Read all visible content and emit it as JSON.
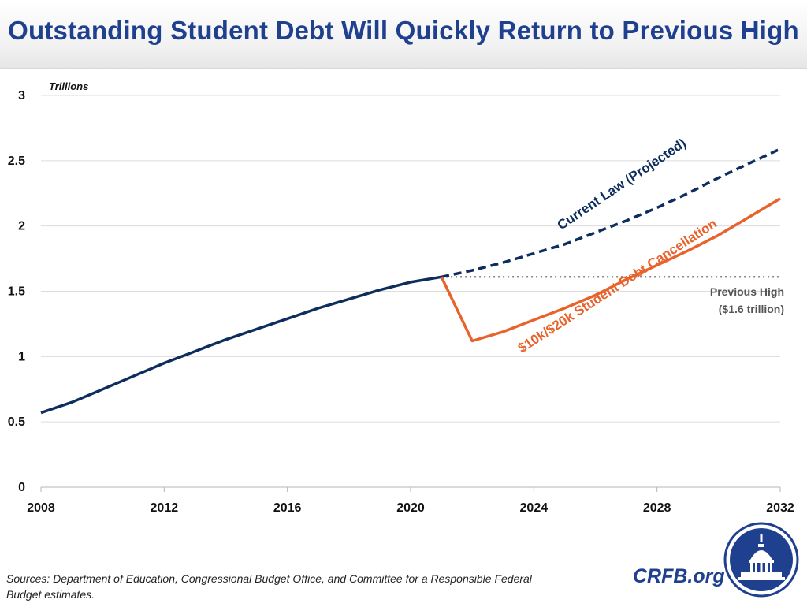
{
  "header": {
    "title": "Outstanding Student Debt Will Quickly Return to Previous High"
  },
  "footer": {
    "sources": "Sources: Department of Education, Congressional Budget Office, and Committee for a Responsible Federal Budget estimates.",
    "brand": "CRFB.org"
  },
  "colors": {
    "navy": "#0d2d5e",
    "orange": "#e8632c",
    "grey_dots": "#8a8a8a",
    "title_blue": "#1f3f8f"
  },
  "chart_data": {
    "type": "line",
    "ylabel": "Trillions",
    "xlim": [
      2008,
      2032
    ],
    "ylim": [
      0,
      3
    ],
    "xticks": [
      2008,
      2012,
      2016,
      2020,
      2024,
      2028,
      2032
    ],
    "yticks": [
      0,
      0.5,
      1,
      1.5,
      2,
      2.5,
      3
    ],
    "ytick_labels": [
      "0",
      "0.5",
      "1",
      "1.5",
      "2",
      "2.5",
      "3"
    ],
    "grid": true,
    "series": [
      {
        "style": "solid",
        "color": "#0d2d5e",
        "x": [
          2008,
          2009,
          2010,
          2011,
          2012,
          2013,
          2014,
          2015,
          2016,
          2017,
          2018,
          2019,
          2020,
          2021
        ],
        "y": [
          0.57,
          0.65,
          0.75,
          0.85,
          0.95,
          1.04,
          1.13,
          1.21,
          1.29,
          1.37,
          1.44,
          1.51,
          1.57,
          1.61
        ]
      },
      {
        "name": "Current Law (Projected)",
        "style": "dashed",
        "color": "#0d2d5e",
        "x": [
          2021,
          2022,
          2023,
          2024,
          2025,
          2026,
          2027,
          2028,
          2029,
          2030,
          2031,
          2032
        ],
        "y": [
          1.61,
          1.66,
          1.72,
          1.79,
          1.86,
          1.95,
          2.04,
          2.14,
          2.25,
          2.37,
          2.48,
          2.59
        ]
      },
      {
        "name": "$10k/$20k Student Debt Cancellation",
        "style": "solid",
        "color": "#e8632c",
        "x": [
          2021,
          2022,
          2023,
          2024,
          2025,
          2026,
          2027,
          2028,
          2029,
          2030,
          2031,
          2032
        ],
        "y": [
          1.61,
          1.12,
          1.19,
          1.28,
          1.37,
          1.47,
          1.59,
          1.7,
          1.81,
          1.93,
          2.07,
          2.21
        ]
      }
    ],
    "reference_line": {
      "y": 1.61,
      "x_start": 2021,
      "x_end": 2032,
      "style": "dotted"
    },
    "annotations": {
      "current_law": "Current Law (Projected)",
      "cancellation": "$10k/$20k Student Debt Cancellation",
      "previous_high_line1": "Previous High",
      "previous_high_line2": "($1.6 trillion)"
    }
  }
}
